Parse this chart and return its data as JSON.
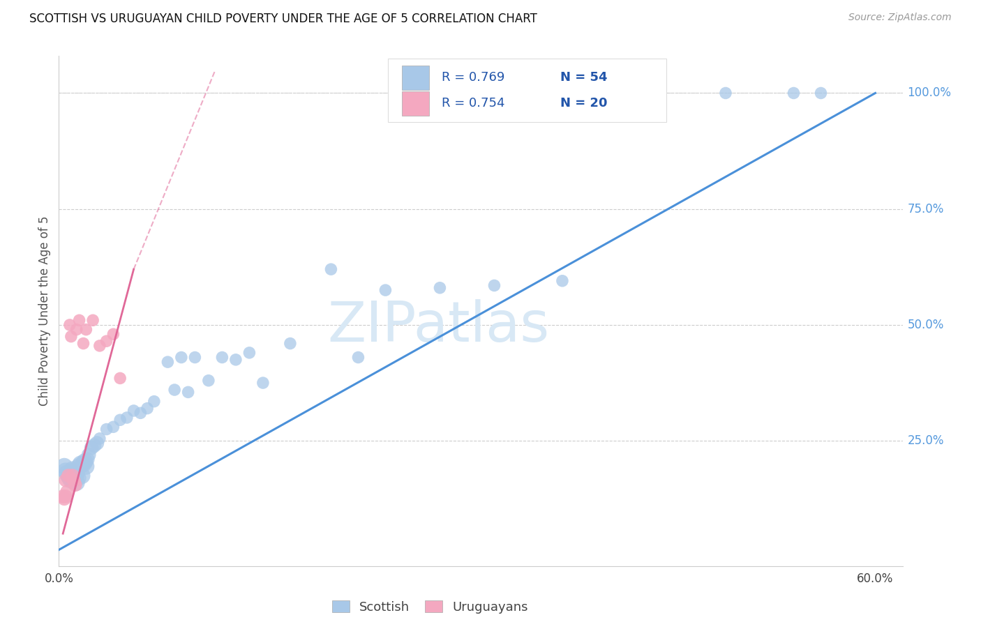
{
  "title": "SCOTTISH VS URUGUAYAN CHILD POVERTY UNDER THE AGE OF 5 CORRELATION CHART",
  "source": "Source: ZipAtlas.com",
  "ylabel": "Child Poverty Under the Age of 5",
  "xlim": [
    0.0,
    0.62
  ],
  "ylim": [
    -0.02,
    1.08
  ],
  "yticks": [
    0.0,
    0.25,
    0.5,
    0.75,
    1.0
  ],
  "ytick_labels": [
    "",
    "25.0%",
    "50.0%",
    "75.0%",
    "100.0%"
  ],
  "xticks": [
    0.0,
    0.1,
    0.2,
    0.3,
    0.4,
    0.5,
    0.6
  ],
  "xtick_labels": [
    "0.0%",
    "",
    "",
    "",
    "",
    "",
    "60.0%"
  ],
  "scottish_R": 0.769,
  "scottish_N": 54,
  "uruguayan_R": 0.754,
  "uruguayan_N": 20,
  "blue_color": "#a8c8e8",
  "pink_color": "#f4a8c0",
  "blue_line_color": "#4a90d9",
  "pink_line_color": "#e06898",
  "legend_text_color": "#2255aa",
  "legend_blue_label": "Scottish",
  "legend_pink_label": "Uruguayans",
  "watermark_text": "ZIPatlas",
  "watermark_color": "#d8e8f5",
  "grid_color": "#cccccc",
  "right_label_color": "#5599dd",
  "scottish_x": [
    0.004,
    0.005,
    0.006,
    0.007,
    0.008,
    0.009,
    0.01,
    0.01,
    0.011,
    0.012,
    0.013,
    0.013,
    0.014,
    0.015,
    0.016,
    0.017,
    0.018,
    0.019,
    0.02,
    0.021,
    0.022,
    0.024,
    0.026,
    0.028,
    0.03,
    0.035,
    0.04,
    0.045,
    0.05,
    0.055,
    0.06,
    0.065,
    0.07,
    0.08,
    0.085,
    0.09,
    0.095,
    0.1,
    0.11,
    0.12,
    0.13,
    0.14,
    0.15,
    0.17,
    0.2,
    0.22,
    0.24,
    0.28,
    0.32,
    0.37,
    0.43,
    0.49,
    0.54,
    0.56
  ],
  "scottish_y": [
    0.195,
    0.185,
    0.18,
    0.175,
    0.17,
    0.165,
    0.188,
    0.165,
    0.185,
    0.175,
    0.18,
    0.16,
    0.17,
    0.195,
    0.2,
    0.175,
    0.2,
    0.205,
    0.195,
    0.21,
    0.22,
    0.235,
    0.24,
    0.245,
    0.255,
    0.275,
    0.28,
    0.295,
    0.3,
    0.315,
    0.31,
    0.32,
    0.335,
    0.42,
    0.36,
    0.43,
    0.355,
    0.43,
    0.38,
    0.43,
    0.425,
    0.44,
    0.375,
    0.46,
    0.62,
    0.43,
    0.575,
    0.58,
    0.585,
    0.595,
    1.0,
    1.0,
    1.0,
    1.0
  ],
  "uruguayan_x": [
    0.003,
    0.004,
    0.005,
    0.005,
    0.006,
    0.007,
    0.008,
    0.009,
    0.01,
    0.011,
    0.012,
    0.013,
    0.015,
    0.018,
    0.02,
    0.025,
    0.03,
    0.035,
    0.04,
    0.045
  ],
  "uruguayan_y": [
    0.13,
    0.125,
    0.13,
    0.165,
    0.14,
    0.175,
    0.5,
    0.475,
    0.175,
    0.165,
    0.155,
    0.49,
    0.51,
    0.46,
    0.49,
    0.51,
    0.455,
    0.465,
    0.48,
    0.385
  ],
  "blue_line_x0": 0.0,
  "blue_line_y0": 0.015,
  "blue_line_x1": 0.6,
  "blue_line_y1": 1.0,
  "pink_line_solid_x0": 0.003,
  "pink_line_solid_y0": 0.05,
  "pink_line_solid_x1": 0.055,
  "pink_line_solid_y1": 0.62,
  "pink_line_dash_x0": 0.055,
  "pink_line_dash_y0": 0.62,
  "pink_line_dash_x1": 0.115,
  "pink_line_dash_y1": 1.05
}
